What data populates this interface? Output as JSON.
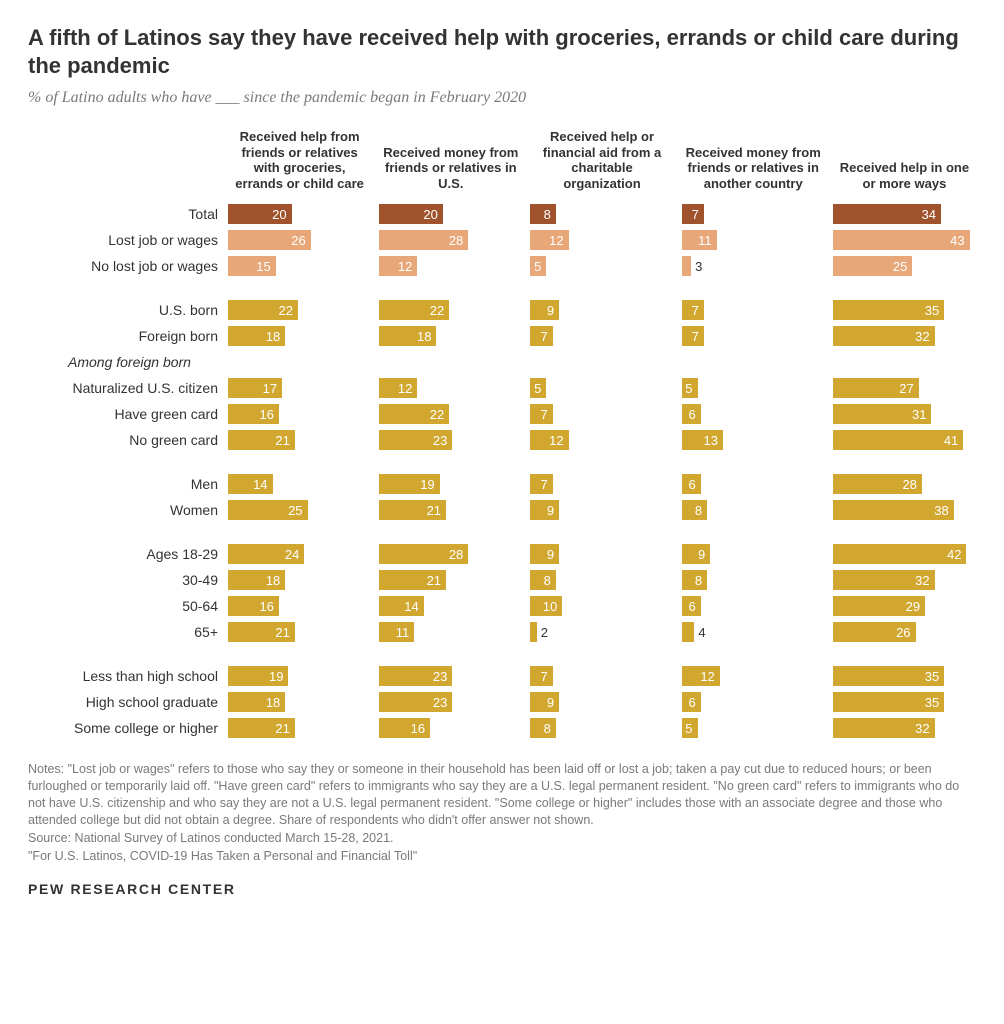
{
  "title": "A fifth of Latinos say they have received help with groceries, errands or child care during the pandemic",
  "subtitle": "% of Latino adults who have ___ since the pandemic began in February 2020",
  "title_fontsize": 22,
  "subtitle_fontsize": 16,
  "max_value": 45,
  "colors": {
    "total": "#a0522d",
    "job": "#e8a778",
    "group": "#d1a730",
    "text_on_bar": "#ffffff",
    "note_text": "#7a7a7a"
  },
  "column_headers": [
    "Received help from friends or relatives with groceries, errands or child care",
    "Received money from friends or relatives in U.S.",
    "Received help or financial aid from a charitable organization",
    "Received money from friends or relatives in another country",
    "Received help in one or more ways"
  ],
  "groups": [
    {
      "rows": [
        {
          "label": "Total",
          "color": "total",
          "values": [
            20,
            20,
            8,
            7,
            34
          ]
        },
        {
          "label": "Lost job or wages",
          "color": "job",
          "values": [
            26,
            28,
            12,
            11,
            43
          ]
        },
        {
          "label": "No lost job or wages",
          "color": "job",
          "values": [
            15,
            12,
            5,
            3,
            25
          ]
        }
      ]
    },
    {
      "rows": [
        {
          "label": "U.S. born",
          "color": "group",
          "values": [
            22,
            22,
            9,
            7,
            35
          ]
        },
        {
          "label": "Foreign born",
          "color": "group",
          "values": [
            18,
            18,
            7,
            7,
            32
          ]
        },
        {
          "label": "Among foreign born",
          "italic": true,
          "values": null
        },
        {
          "label": "Naturalized U.S. citizen",
          "color": "group",
          "values": [
            17,
            12,
            5,
            5,
            27
          ]
        },
        {
          "label": "Have green card",
          "color": "group",
          "values": [
            16,
            22,
            7,
            6,
            31
          ]
        },
        {
          "label": "No green card",
          "color": "group",
          "values": [
            21,
            23,
            12,
            13,
            41
          ]
        }
      ]
    },
    {
      "rows": [
        {
          "label": "Men",
          "color": "group",
          "values": [
            14,
            19,
            7,
            6,
            28
          ]
        },
        {
          "label": "Women",
          "color": "group",
          "values": [
            25,
            21,
            9,
            8,
            38
          ]
        }
      ]
    },
    {
      "rows": [
        {
          "label": "Ages 18-29",
          "color": "group",
          "values": [
            24,
            28,
            9,
            9,
            42
          ]
        },
        {
          "label": "30-49",
          "color": "group",
          "values": [
            18,
            21,
            8,
            8,
            32
          ]
        },
        {
          "label": "50-64",
          "color": "group",
          "values": [
            16,
            14,
            10,
            6,
            29
          ]
        },
        {
          "label": "65+",
          "color": "group",
          "values": [
            21,
            11,
            2,
            4,
            26
          ]
        }
      ]
    },
    {
      "rows": [
        {
          "label": "Less than high school",
          "color": "group",
          "values": [
            19,
            23,
            7,
            12,
            35
          ]
        },
        {
          "label": "High school graduate",
          "color": "group",
          "values": [
            18,
            23,
            9,
            6,
            35
          ]
        },
        {
          "label": "Some college or higher",
          "color": "group",
          "values": [
            21,
            16,
            8,
            5,
            32
          ]
        }
      ]
    }
  ],
  "notes": [
    "Notes: \"Lost job or wages\" refers to those who say they or someone in their household has been laid off or lost a job; taken a pay cut due to reduced hours; or been furloughed or temporarily laid off. \"Have green card\" refers to immigrants who say they are a U.S. legal permanent resident. \"No green card\" refers to immigrants who do not have U.S. citizenship and who say they are not a U.S. legal permanent resident. \"Some college or higher\" includes those with an associate degree and those who attended college but did not obtain a degree. Share of respondents who didn't offer answer not shown.",
    "Source: National Survey of Latinos conducted March 15-28, 2021.",
    "\"For U.S. Latinos, COVID-19 Has Taken a Personal and Financial Toll\""
  ],
  "logo": "PEW RESEARCH CENTER"
}
